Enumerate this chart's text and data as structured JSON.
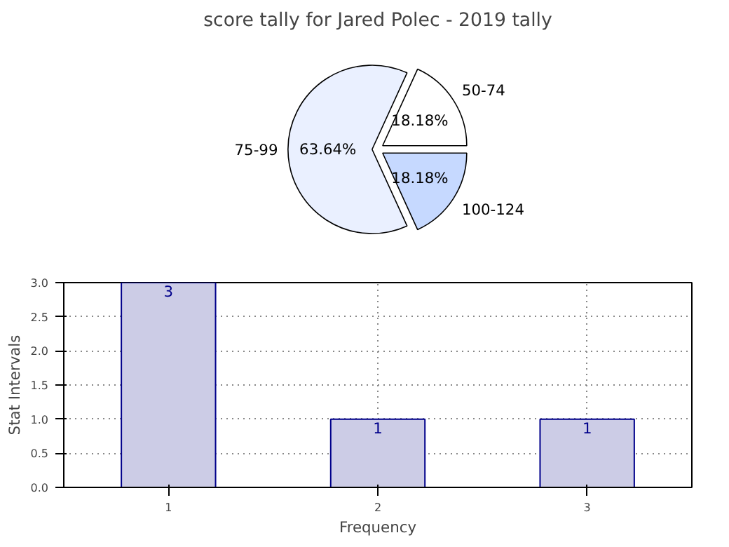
{
  "chart_data": [
    {
      "type": "pie",
      "title": "score tally for Jared Polec - 2019 tally",
      "categories": [
        "50-74",
        "75-99",
        "100-124"
      ],
      "values": [
        18.18,
        63.64,
        18.18
      ],
      "colors": [
        "#ffffff",
        "#eaf0ff",
        "#c6d9ff"
      ],
      "value_labels": [
        "18.18%",
        "63.64%",
        "18.18%"
      ]
    },
    {
      "type": "bar",
      "xlabel": "Frequency",
      "ylabel": "Stat Intervals",
      "x": [
        1,
        2,
        3
      ],
      "values": [
        3,
        1,
        1
      ],
      "color": "#ccccE6",
      "xlim": [
        0.5,
        3.5
      ],
      "ylim": [
        0,
        3
      ],
      "xticks": [
        1,
        2,
        3
      ],
      "yticks": [
        {
          "value": 0,
          "label": "0.0"
        },
        {
          "value": 0.5,
          "label": "0.5"
        },
        {
          "value": 1,
          "label": "1.0"
        },
        {
          "value": 1.5,
          "label": "1.5"
        },
        {
          "value": 2,
          "label": "2.0"
        },
        {
          "value": 2.5,
          "label": "2.5"
        },
        {
          "value": 3,
          "label": "3.0"
        }
      ],
      "grid": true,
      "data_labels": true
    }
  ]
}
